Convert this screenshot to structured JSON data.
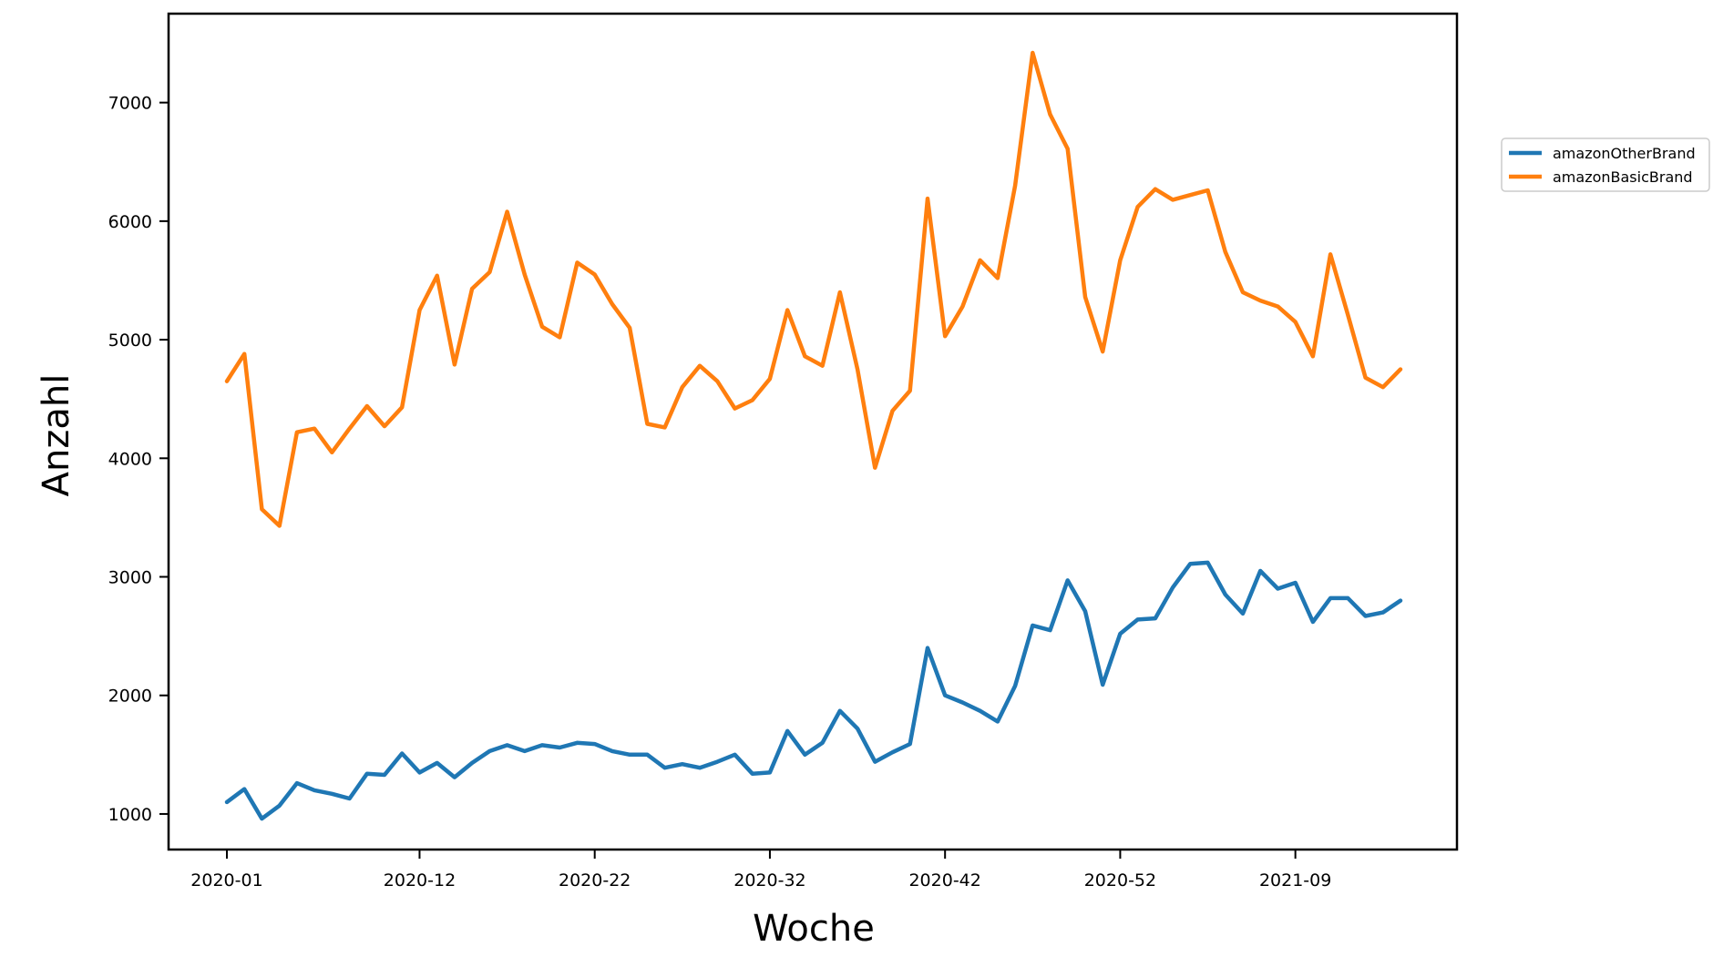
{
  "chart_data": {
    "type": "line",
    "title": "",
    "xlabel": "Woche",
    "ylabel": "Anzahl",
    "x": [
      "2020-01",
      "2020-02",
      "2020-03",
      "2020-04",
      "2020-05",
      "2020-06",
      "2020-07",
      "2020-08",
      "2020-09",
      "2020-10",
      "2020-11",
      "2020-12",
      "2020-13",
      "2020-14",
      "2020-15",
      "2020-16",
      "2020-17",
      "2020-18",
      "2020-19",
      "2020-20",
      "2020-21",
      "2020-22",
      "2020-23",
      "2020-24",
      "2020-25",
      "2020-26",
      "2020-27",
      "2020-28",
      "2020-29",
      "2020-30",
      "2020-31",
      "2020-32",
      "2020-33",
      "2020-34",
      "2020-35",
      "2020-36",
      "2020-37",
      "2020-38",
      "2020-39",
      "2020-40",
      "2020-41",
      "2020-42",
      "2020-43",
      "2020-44",
      "2020-45",
      "2020-46",
      "2020-47",
      "2020-48",
      "2020-49",
      "2020-50",
      "2020-51",
      "2020-52",
      "2020-53",
      "2021-01",
      "2021-02",
      "2021-03",
      "2021-04",
      "2021-05",
      "2021-06",
      "2021-07",
      "2021-08",
      "2021-09",
      "2021-10",
      "2021-11",
      "2021-12",
      "2021-13",
      "2021-14",
      "2021-15"
    ],
    "xticks": [
      "2020-01",
      "2020-12",
      "2020-22",
      "2020-32",
      "2020-42",
      "2020-52",
      "2021-09"
    ],
    "yticks": [
      1000,
      2000,
      3000,
      4000,
      5000,
      6000,
      7000
    ],
    "ylim": [
      700,
      7750
    ],
    "series": [
      {
        "name": "amazonOtherBrand",
        "color": "#1f77b4",
        "values": [
          1100,
          1210,
          960,
          1070,
          1260,
          1200,
          1170,
          1130,
          1340,
          1330,
          1510,
          1350,
          1430,
          1310,
          1430,
          1530,
          1580,
          1530,
          1580,
          1560,
          1600,
          1590,
          1530,
          1500,
          1500,
          1390,
          1420,
          1390,
          1440,
          1500,
          1340,
          1350,
          1700,
          1500,
          1600,
          1870,
          1720,
          1440,
          1520,
          1590,
          2400,
          2000,
          1940,
          1870,
          1780,
          2080,
          2590,
          2550,
          2970,
          2710,
          2090,
          2520,
          2640,
          2650,
          2910,
          3110,
          3120,
          2850,
          2690,
          3050,
          2900,
          2950,
          2620,
          2820,
          2820,
          2670,
          2700,
          2800
        ]
      },
      {
        "name": "amazonBasicBrand",
        "color": "#ff7f0e",
        "values": [
          4650,
          4880,
          3570,
          3430,
          4220,
          4250,
          4050,
          4250,
          4440,
          4270,
          4430,
          5250,
          5540,
          4790,
          5430,
          5570,
          6080,
          5550,
          5110,
          5020,
          5650,
          5550,
          5300,
          5100,
          4290,
          4260,
          4600,
          4780,
          4650,
          4420,
          4490,
          4670,
          5250,
          4860,
          4780,
          5400,
          4750,
          3920,
          4400,
          4570,
          6190,
          5030,
          5280,
          5670,
          5520,
          6300,
          7420,
          6900,
          6610,
          5360,
          4900,
          5670,
          6120,
          6270,
          6180,
          6220,
          6260,
          5740,
          5400,
          5330,
          5280,
          5150,
          4860,
          5720,
          5210,
          4680,
          4600,
          4750
        ]
      }
    ],
    "legend": {
      "placement": "outside-right-top",
      "entries": [
        "amazonOtherBrand",
        "amazonBasicBrand"
      ]
    },
    "grid": false
  }
}
